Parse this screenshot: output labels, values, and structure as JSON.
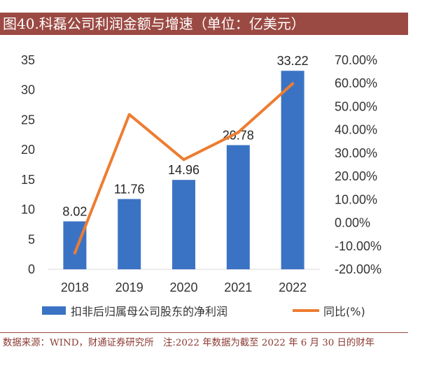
{
  "title": "图40.科磊公司利润金额与增速（单位：亿美元）",
  "source_note": "数据来源：WIND，财通证券研究所　注:2022 年数据为截至 2022 年 6 月 30 日的财年",
  "chart_data": {
    "type": "bar",
    "categories": [
      "2018",
      "2019",
      "2020",
      "2021",
      "2022"
    ],
    "series": [
      {
        "name": "扣非后归属母公司股东的净利润",
        "type": "bar",
        "axis": "left",
        "color": "#3b73c4",
        "values": [
          8.02,
          11.76,
          14.96,
          20.78,
          33.22
        ],
        "labels": [
          "8.02",
          "11.76",
          "14.96",
          "20.78",
          "33.22"
        ]
      },
      {
        "name": "同比(%)",
        "type": "line",
        "axis": "right",
        "color": "#ed7d31",
        "values": [
          -13.0,
          46.6,
          27.2,
          38.9,
          59.9
        ]
      }
    ],
    "y_left": {
      "min": 0,
      "max": 35,
      "ticks": [
        0,
        5,
        10,
        15,
        20,
        25,
        30,
        35
      ],
      "tick_labels": [
        "0",
        "5",
        "10",
        "15",
        "20",
        "25",
        "30",
        "35"
      ]
    },
    "y_right": {
      "min": -20,
      "max": 70,
      "ticks": [
        -20,
        -10,
        0,
        10,
        20,
        30,
        40,
        50,
        60,
        70
      ],
      "tick_labels": [
        "-20.00%",
        "-10.00%",
        "0.00%",
        "10.00%",
        "20.00%",
        "30.00%",
        "40.00%",
        "50.00%",
        "60.00%",
        "70.00%"
      ]
    },
    "title": "",
    "xlabel": "",
    "ylabel": "",
    "grid": false,
    "legend": "bottom"
  }
}
